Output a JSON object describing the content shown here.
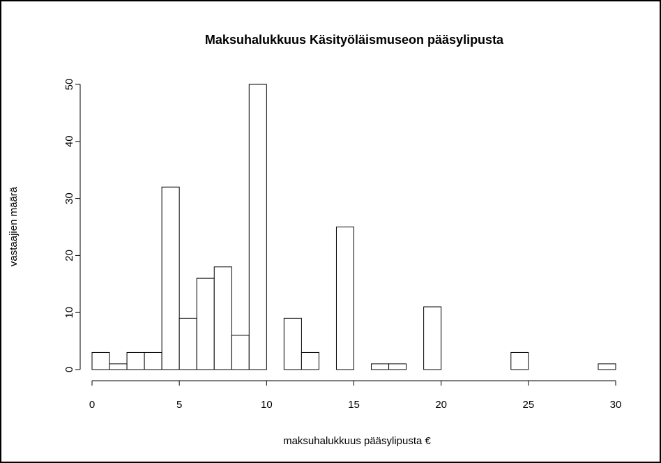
{
  "chart_data": {
    "type": "histogram",
    "title": "Maksuhalukkuus Käsityöläismuseon pääsylipusta",
    "x_label": "maksuhalukkuus pääsylipusta €",
    "y_label": "vastaajien määrä",
    "bins": [
      0,
      1,
      2,
      3,
      4,
      5,
      6,
      7,
      8,
      9,
      10,
      11,
      12,
      13,
      14,
      15,
      16,
      17,
      18,
      19,
      20,
      21,
      22,
      23,
      24,
      25,
      26,
      27,
      28,
      29,
      30
    ],
    "values": [
      3,
      1,
      3,
      3,
      32,
      9,
      16,
      18,
      6,
      50,
      0,
      9,
      3,
      0,
      25,
      0,
      1,
      1,
      0,
      11,
      0,
      0,
      0,
      0,
      3,
      0,
      0,
      0,
      0,
      1
    ],
    "color": "#ffffff",
    "xlim": [
      0,
      30
    ],
    "xticks": [
      0,
      5,
      10,
      15,
      20,
      25,
      30
    ],
    "ylim": [
      0,
      50
    ],
    "yticks": [
      0,
      10,
      20,
      30,
      40,
      50
    ]
  }
}
